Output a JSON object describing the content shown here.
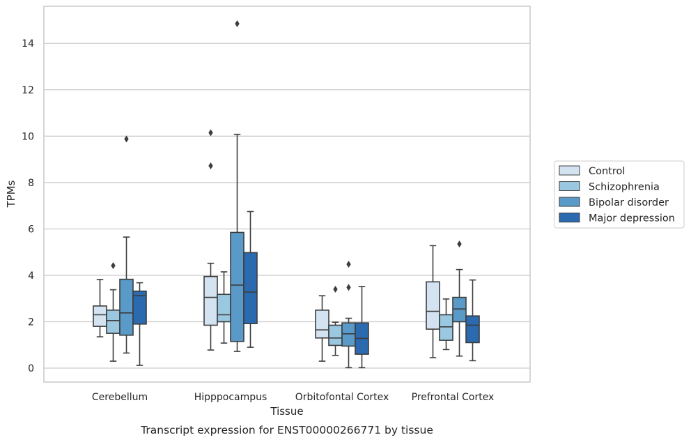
{
  "caption": "Transcript expression for ENST00000266771 by tissue",
  "chart_data": {
    "type": "box",
    "xlabel": "Tissue",
    "ylabel": "TPMs",
    "ylim": [
      -0.6,
      15.6
    ],
    "yticks": [
      0,
      2,
      4,
      6,
      8,
      10,
      12,
      14
    ],
    "grid": "horizontal",
    "legend_placement": "right",
    "categories": [
      "Cerebellum",
      "Hipppocampus",
      "Orbitofontal Cortex",
      "Prefrontal Cortex"
    ],
    "series": [
      {
        "name": "Control",
        "color": "#d3e3f2",
        "boxes": [
          {
            "q1": 1.8,
            "median": 2.3,
            "q3": 2.68,
            "whisker_low": 1.35,
            "whisker_high": 3.82,
            "outliers": []
          },
          {
            "q1": 1.85,
            "median": 3.05,
            "q3": 3.95,
            "whisker_low": 0.78,
            "whisker_high": 4.52,
            "outliers": [
              8.72,
              10.15
            ]
          },
          {
            "q1": 1.3,
            "median": 1.65,
            "q3": 2.5,
            "whisker_low": 0.3,
            "whisker_high": 3.12,
            "outliers": []
          },
          {
            "q1": 1.68,
            "median": 2.45,
            "q3": 3.72,
            "whisker_low": 0.45,
            "whisker_high": 5.28,
            "outliers": []
          }
        ]
      },
      {
        "name": "Schizophrenia",
        "color": "#9ac8e0",
        "boxes": [
          {
            "q1": 1.5,
            "median": 2.05,
            "q3": 2.5,
            "whisker_low": 0.3,
            "whisker_high": 3.38,
            "outliers": [
              4.42
            ]
          },
          {
            "q1": 2.0,
            "median": 2.3,
            "q3": 3.18,
            "whisker_low": 1.08,
            "whisker_high": 4.15,
            "outliers": []
          },
          {
            "q1": 0.98,
            "median": 1.3,
            "q3": 1.85,
            "whisker_low": 0.55,
            "whisker_high": 1.98,
            "outliers": [
              3.4
            ]
          },
          {
            "q1": 1.2,
            "median": 1.78,
            "q3": 2.3,
            "whisker_low": 0.8,
            "whisker_high": 2.98,
            "outliers": []
          }
        ]
      },
      {
        "name": "Bipolar disorder",
        "color": "#5a9ac8",
        "boxes": [
          {
            "q1": 1.42,
            "median": 2.38,
            "q3": 3.83,
            "whisker_low": 0.65,
            "whisker_high": 5.65,
            "outliers": [
              9.88
            ]
          },
          {
            "q1": 1.15,
            "median": 3.58,
            "q3": 5.85,
            "whisker_low": 0.72,
            "whisker_high": 10.08,
            "outliers": [
              14.85
            ]
          },
          {
            "q1": 0.95,
            "median": 1.48,
            "q3": 1.95,
            "whisker_low": 0.02,
            "whisker_high": 2.15,
            "outliers": [
              3.48,
              4.48
            ]
          },
          {
            "q1": 2.0,
            "median": 2.55,
            "q3": 3.05,
            "whisker_low": 0.52,
            "whisker_high": 4.25,
            "outliers": [
              5.35
            ]
          }
        ]
      },
      {
        "name": "Major depression",
        "color": "#2b6aae",
        "boxes": [
          {
            "q1": 1.9,
            "median": 3.12,
            "q3": 3.32,
            "whisker_low": 0.12,
            "whisker_high": 3.68,
            "outliers": []
          },
          {
            "q1": 1.92,
            "median": 3.28,
            "q3": 4.98,
            "whisker_low": 0.9,
            "whisker_high": 6.75,
            "outliers": []
          },
          {
            "q1": 0.6,
            "median": 1.28,
            "q3": 1.95,
            "whisker_low": 0.02,
            "whisker_high": 3.52,
            "outliers": []
          },
          {
            "q1": 1.1,
            "median": 1.85,
            "q3": 2.25,
            "whisker_low": 0.32,
            "whisker_high": 3.8,
            "outliers": []
          }
        ]
      }
    ]
  }
}
